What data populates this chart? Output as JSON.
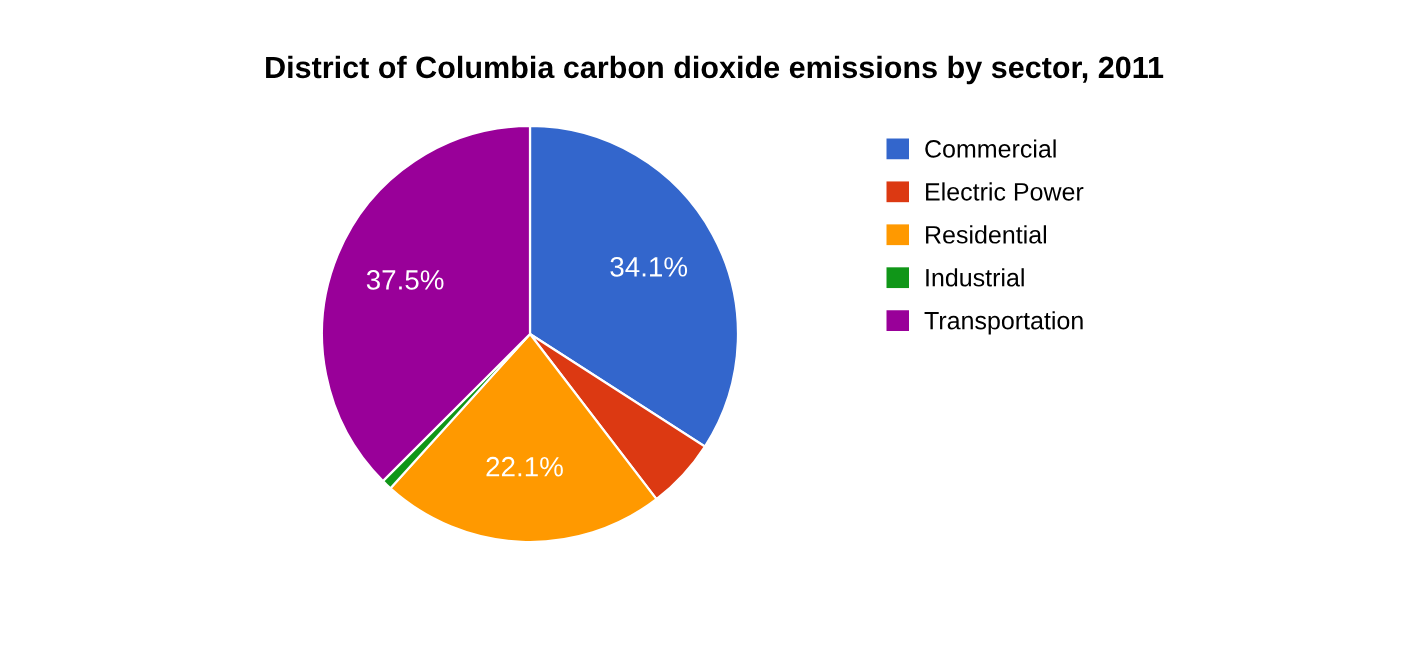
{
  "chart_data": {
    "type": "pie",
    "title": "District of Columbia carbon dioxide emissions by sector, 2011",
    "categories": [
      "Commercial",
      "Electric Power",
      "Residential",
      "Industrial",
      "Transportation"
    ],
    "values": [
      34.1,
      5.5,
      22.1,
      0.8,
      37.5
    ],
    "colors": [
      "#3366cc",
      "#dc3912",
      "#ff9900",
      "#109618",
      "#990099"
    ],
    "value_labels": [
      "34.1%",
      null,
      "22.1%",
      null,
      "37.5%"
    ],
    "legend": "right"
  }
}
